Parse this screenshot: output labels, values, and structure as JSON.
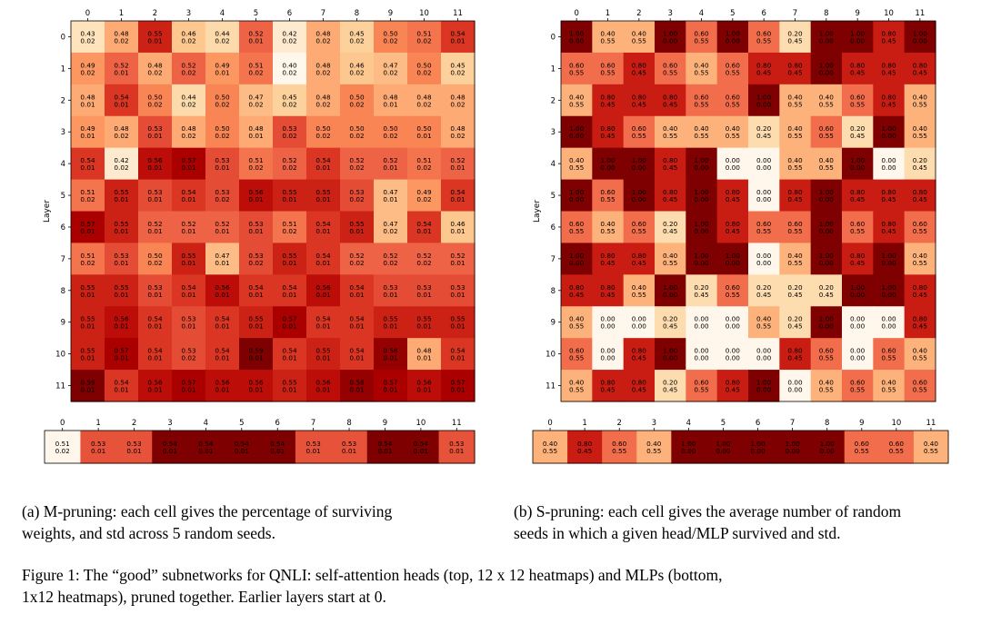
{
  "chart_data": [
    {
      "type": "heatmap",
      "name": "m-pruning-heads",
      "x_ticks": [
        "0",
        "1",
        "2",
        "3",
        "4",
        "5",
        "6",
        "7",
        "8",
        "9",
        "10",
        "11"
      ],
      "y_ticks": [
        "0",
        "1",
        "2",
        "3",
        "4",
        "5",
        "6",
        "7",
        "8",
        "9",
        "10",
        "11"
      ],
      "ylabel": "Layer",
      "vmin": 0.4,
      "vmax": 0.59,
      "colormap": "OrRd",
      "means": [
        [
          0.43,
          0.48,
          0.55,
          0.46,
          0.44,
          0.52,
          0.42,
          0.48,
          0.45,
          0.5,
          0.51,
          0.54
        ],
        [
          0.49,
          0.52,
          0.48,
          0.52,
          0.49,
          0.51,
          0.4,
          0.48,
          0.46,
          0.47,
          0.5,
          0.45
        ],
        [
          0.48,
          0.54,
          0.5,
          0.44,
          0.5,
          0.47,
          0.45,
          0.48,
          0.5,
          0.48,
          0.48,
          0.48
        ],
        [
          0.49,
          0.48,
          0.53,
          0.48,
          0.5,
          0.48,
          0.53,
          0.5,
          0.5,
          0.5,
          0.5,
          0.48
        ],
        [
          0.54,
          0.42,
          0.56,
          0.57,
          0.53,
          0.51,
          0.52,
          0.54,
          0.52,
          0.52,
          0.51,
          0.52
        ],
        [
          0.51,
          0.55,
          0.53,
          0.54,
          0.53,
          0.56,
          0.55,
          0.55,
          0.53,
          0.47,
          0.49,
          0.54
        ],
        [
          0.57,
          0.55,
          0.52,
          0.52,
          0.52,
          0.53,
          0.51,
          0.54,
          0.55,
          0.47,
          0.54,
          0.46
        ],
        [
          0.51,
          0.53,
          0.5,
          0.55,
          0.47,
          0.53,
          0.55,
          0.54,
          0.52,
          0.52,
          0.52,
          0.52
        ],
        [
          0.55,
          0.55,
          0.53,
          0.54,
          0.56,
          0.54,
          0.54,
          0.56,
          0.54,
          0.53,
          0.53,
          0.53
        ],
        [
          0.55,
          0.56,
          0.54,
          0.53,
          0.54,
          0.55,
          0.57,
          0.54,
          0.54,
          0.55,
          0.55,
          0.55
        ],
        [
          0.55,
          0.57,
          0.54,
          0.53,
          0.54,
          0.59,
          0.54,
          0.55,
          0.54,
          0.58,
          0.48,
          0.54
        ],
        [
          0.59,
          0.54,
          0.56,
          0.57,
          0.56,
          0.56,
          0.55,
          0.56,
          0.58,
          0.57,
          0.56,
          0.57
        ]
      ],
      "stds": [
        [
          0.02,
          0.02,
          0.01,
          0.02,
          0.02,
          0.01,
          0.02,
          0.02,
          0.02,
          0.02,
          0.02,
          0.01
        ],
        [
          0.02,
          0.01,
          0.02,
          0.02,
          0.01,
          0.02,
          0.02,
          0.02,
          0.02,
          0.02,
          0.02,
          0.02
        ],
        [
          0.01,
          0.01,
          0.02,
          0.02,
          0.02,
          0.02,
          0.02,
          0.02,
          0.02,
          0.01,
          0.02,
          0.02
        ],
        [
          0.01,
          0.02,
          0.01,
          0.02,
          0.02,
          0.01,
          0.02,
          0.02,
          0.02,
          0.02,
          0.01,
          0.02
        ],
        [
          0.01,
          0.02,
          0.01,
          0.01,
          0.01,
          0.02,
          0.02,
          0.01,
          0.02,
          0.01,
          0.02,
          0.01
        ],
        [
          0.02,
          0.01,
          0.01,
          0.01,
          0.02,
          0.01,
          0.01,
          0.01,
          0.02,
          0.01,
          0.02,
          0.01
        ],
        [
          0.01,
          0.01,
          0.01,
          0.01,
          0.01,
          0.01,
          0.02,
          0.01,
          0.01,
          0.02,
          0.01,
          0.01
        ],
        [
          0.02,
          0.01,
          0.02,
          0.01,
          0.01,
          0.02,
          0.01,
          0.01,
          0.02,
          0.02,
          0.02,
          0.01
        ],
        [
          0.01,
          0.01,
          0.01,
          0.01,
          0.01,
          0.01,
          0.01,
          0.01,
          0.01,
          0.01,
          0.01,
          0.01
        ],
        [
          0.01,
          0.01,
          0.01,
          0.01,
          0.01,
          0.01,
          0.01,
          0.01,
          0.01,
          0.01,
          0.01,
          0.01
        ],
        [
          0.01,
          0.01,
          0.01,
          0.02,
          0.01,
          0.01,
          0.01,
          0.01,
          0.01,
          0.01,
          0.01,
          0.01
        ],
        [
          0.01,
          0.01,
          0.01,
          0.01,
          0.01,
          0.01,
          0.01,
          0.01,
          0.01,
          0.01,
          0.01,
          0.01
        ]
      ]
    },
    {
      "type": "heatmap",
      "name": "m-pruning-mlps",
      "x_ticks": [
        "0",
        "1",
        "2",
        "3",
        "4",
        "5",
        "6",
        "7",
        "8",
        "9",
        "10",
        "11"
      ],
      "vmin": 0.51,
      "vmax": 0.54,
      "colormap": "OrRd",
      "means": [
        [
          0.51,
          0.53,
          0.53,
          0.54,
          0.54,
          0.54,
          0.54,
          0.53,
          0.53,
          0.54,
          0.54,
          0.53
        ]
      ],
      "stds": [
        [
          0.02,
          0.01,
          0.01,
          0.01,
          0.01,
          0.01,
          0.01,
          0.01,
          0.01,
          0.01,
          0.01,
          0.01
        ]
      ]
    },
    {
      "type": "heatmap",
      "name": "s-pruning-heads",
      "x_ticks": [
        "0",
        "1",
        "2",
        "3",
        "4",
        "5",
        "6",
        "7",
        "8",
        "9",
        "10",
        "11"
      ],
      "y_ticks": [
        "0",
        "1",
        "2",
        "3",
        "4",
        "5",
        "6",
        "7",
        "8",
        "9",
        "10",
        "11"
      ],
      "ylabel": "Layer",
      "vmin": 0.0,
      "vmax": 1.0,
      "colormap": "OrRd",
      "means": [
        [
          1.0,
          0.4,
          0.4,
          1.0,
          0.6,
          1.0,
          0.6,
          0.2,
          1.0,
          1.0,
          0.8,
          1.0
        ],
        [
          0.6,
          0.6,
          0.8,
          0.6,
          0.4,
          0.6,
          0.8,
          0.8,
          1.0,
          0.8,
          0.8,
          0.8
        ],
        [
          0.4,
          0.8,
          0.8,
          0.8,
          0.6,
          0.6,
          1.0,
          0.4,
          0.4,
          0.6,
          0.8,
          0.4
        ],
        [
          1.0,
          0.8,
          0.6,
          0.4,
          0.4,
          0.4,
          0.2,
          0.4,
          0.6,
          0.2,
          1.0,
          0.4
        ],
        [
          0.4,
          1.0,
          1.0,
          0.8,
          1.0,
          0.0,
          0.0,
          0.4,
          0.4,
          1.0,
          0.0,
          0.2
        ],
        [
          1.0,
          0.6,
          1.0,
          0.8,
          1.0,
          0.8,
          0.0,
          0.8,
          1.0,
          0.8,
          0.8,
          0.8
        ],
        [
          0.6,
          0.4,
          0.6,
          0.2,
          1.0,
          0.8,
          0.6,
          0.6,
          1.0,
          0.6,
          0.8,
          0.6
        ],
        [
          1.0,
          0.8,
          0.8,
          0.4,
          1.0,
          1.0,
          0.0,
          0.4,
          1.0,
          0.8,
          1.0,
          0.4
        ],
        [
          0.8,
          0.8,
          0.4,
          1.0,
          0.2,
          0.6,
          0.2,
          0.2,
          0.2,
          1.0,
          1.0,
          0.8
        ],
        [
          0.4,
          0.0,
          0.0,
          0.2,
          0.0,
          0.0,
          0.4,
          0.2,
          1.0,
          0.0,
          0.0,
          0.8
        ],
        [
          0.6,
          0.0,
          0.8,
          1.0,
          0.0,
          0.0,
          0.0,
          0.8,
          0.6,
          0.0,
          0.6,
          0.4
        ],
        [
          0.4,
          0.8,
          0.8,
          0.2,
          0.6,
          0.8,
          1.0,
          0.0,
          0.4,
          0.6,
          0.4,
          0.6
        ]
      ],
      "stds": [
        [
          0.0,
          0.55,
          0.55,
          0.0,
          0.55,
          0.0,
          0.55,
          0.45,
          0.0,
          0.0,
          0.45,
          0.0
        ],
        [
          0.55,
          0.55,
          0.45,
          0.55,
          0.55,
          0.55,
          0.45,
          0.45,
          0.0,
          0.45,
          0.45,
          0.45
        ],
        [
          0.55,
          0.45,
          0.45,
          0.45,
          0.55,
          0.55,
          0.0,
          0.55,
          0.55,
          0.55,
          0.45,
          0.55
        ],
        [
          0.0,
          0.45,
          0.55,
          0.55,
          0.55,
          0.55,
          0.45,
          0.55,
          0.55,
          0.45,
          0.0,
          0.55
        ],
        [
          0.55,
          0.0,
          0.0,
          0.45,
          0.0,
          0.0,
          0.0,
          0.55,
          0.55,
          0.0,
          0.0,
          0.45
        ],
        [
          0.0,
          0.55,
          0.0,
          0.45,
          0.0,
          0.45,
          0.0,
          0.45,
          0.0,
          0.45,
          0.45,
          0.45
        ],
        [
          0.55,
          0.55,
          0.55,
          0.45,
          0.0,
          0.45,
          0.55,
          0.55,
          0.0,
          0.55,
          0.45,
          0.55
        ],
        [
          0.0,
          0.45,
          0.45,
          0.55,
          0.0,
          0.0,
          0.0,
          0.55,
          0.0,
          0.45,
          0.0,
          0.55
        ],
        [
          0.45,
          0.45,
          0.55,
          0.0,
          0.45,
          0.55,
          0.45,
          0.45,
          0.45,
          0.0,
          0.0,
          0.45
        ],
        [
          0.55,
          0.0,
          0.0,
          0.45,
          0.0,
          0.0,
          0.55,
          0.45,
          0.0,
          0.0,
          0.0,
          0.45
        ],
        [
          0.55,
          0.0,
          0.45,
          0.0,
          0.0,
          0.0,
          0.0,
          0.45,
          0.55,
          0.0,
          0.55,
          0.55
        ],
        [
          0.55,
          0.45,
          0.45,
          0.45,
          0.55,
          0.45,
          0.0,
          0.0,
          0.55,
          0.55,
          0.55,
          0.55
        ]
      ]
    },
    {
      "type": "heatmap",
      "name": "s-pruning-mlps",
      "x_ticks": [
        "0",
        "1",
        "2",
        "3",
        "4",
        "5",
        "6",
        "7",
        "8",
        "9",
        "10",
        "11"
      ],
      "vmin": 0.0,
      "vmax": 1.0,
      "colormap": "OrRd",
      "means": [
        [
          0.4,
          0.8,
          0.6,
          0.4,
          1.0,
          1.0,
          1.0,
          1.0,
          1.0,
          0.6,
          0.6,
          0.4
        ]
      ],
      "stds": [
        [
          0.55,
          0.45,
          0.55,
          0.55,
          0.0,
          0.0,
          0.0,
          0.0,
          0.0,
          0.55,
          0.55,
          0.55
        ]
      ]
    }
  ],
  "captions": {
    "a": "(a) M-pruning: each cell gives the percentage of surviving\nweights, and std across 5 random seeds.",
    "b": "(b) S-pruning: each cell gives the average number of random\nseeds in which a given head/MLP survived and std.",
    "figure": "Figure 1: The “good” subnetworks for QNLI: self-attention heads (top, 12 x 12 heatmaps) and MLPs (bottom,\n1x12 heatmaps), pruned together. Earlier layers start at 0."
  }
}
